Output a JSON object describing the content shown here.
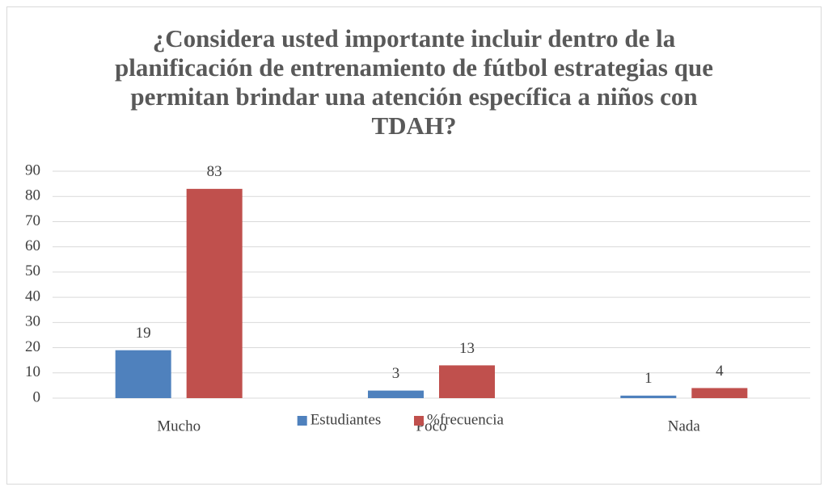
{
  "chart_data": {
    "type": "bar",
    "title": "¿Considera usted importante incluir dentro de la planificación de entrenamiento de fútbol estrategias que permitan brindar una atención específica a niños con TDAH?",
    "categories": [
      "Mucho",
      "Poco",
      "Nada"
    ],
    "series": [
      {
        "name": "Estudiantes",
        "color": "#4f81bd",
        "values": [
          19,
          3,
          1
        ]
      },
      {
        "name": "%frecuencia",
        "color": "#c0504d",
        "values": [
          83,
          13,
          4
        ]
      }
    ],
    "ylim": [
      0,
      90
    ],
    "yticks": [
      0,
      10,
      20,
      30,
      40,
      50,
      60,
      70,
      80,
      90
    ],
    "grid": true,
    "legend": "bottom"
  }
}
